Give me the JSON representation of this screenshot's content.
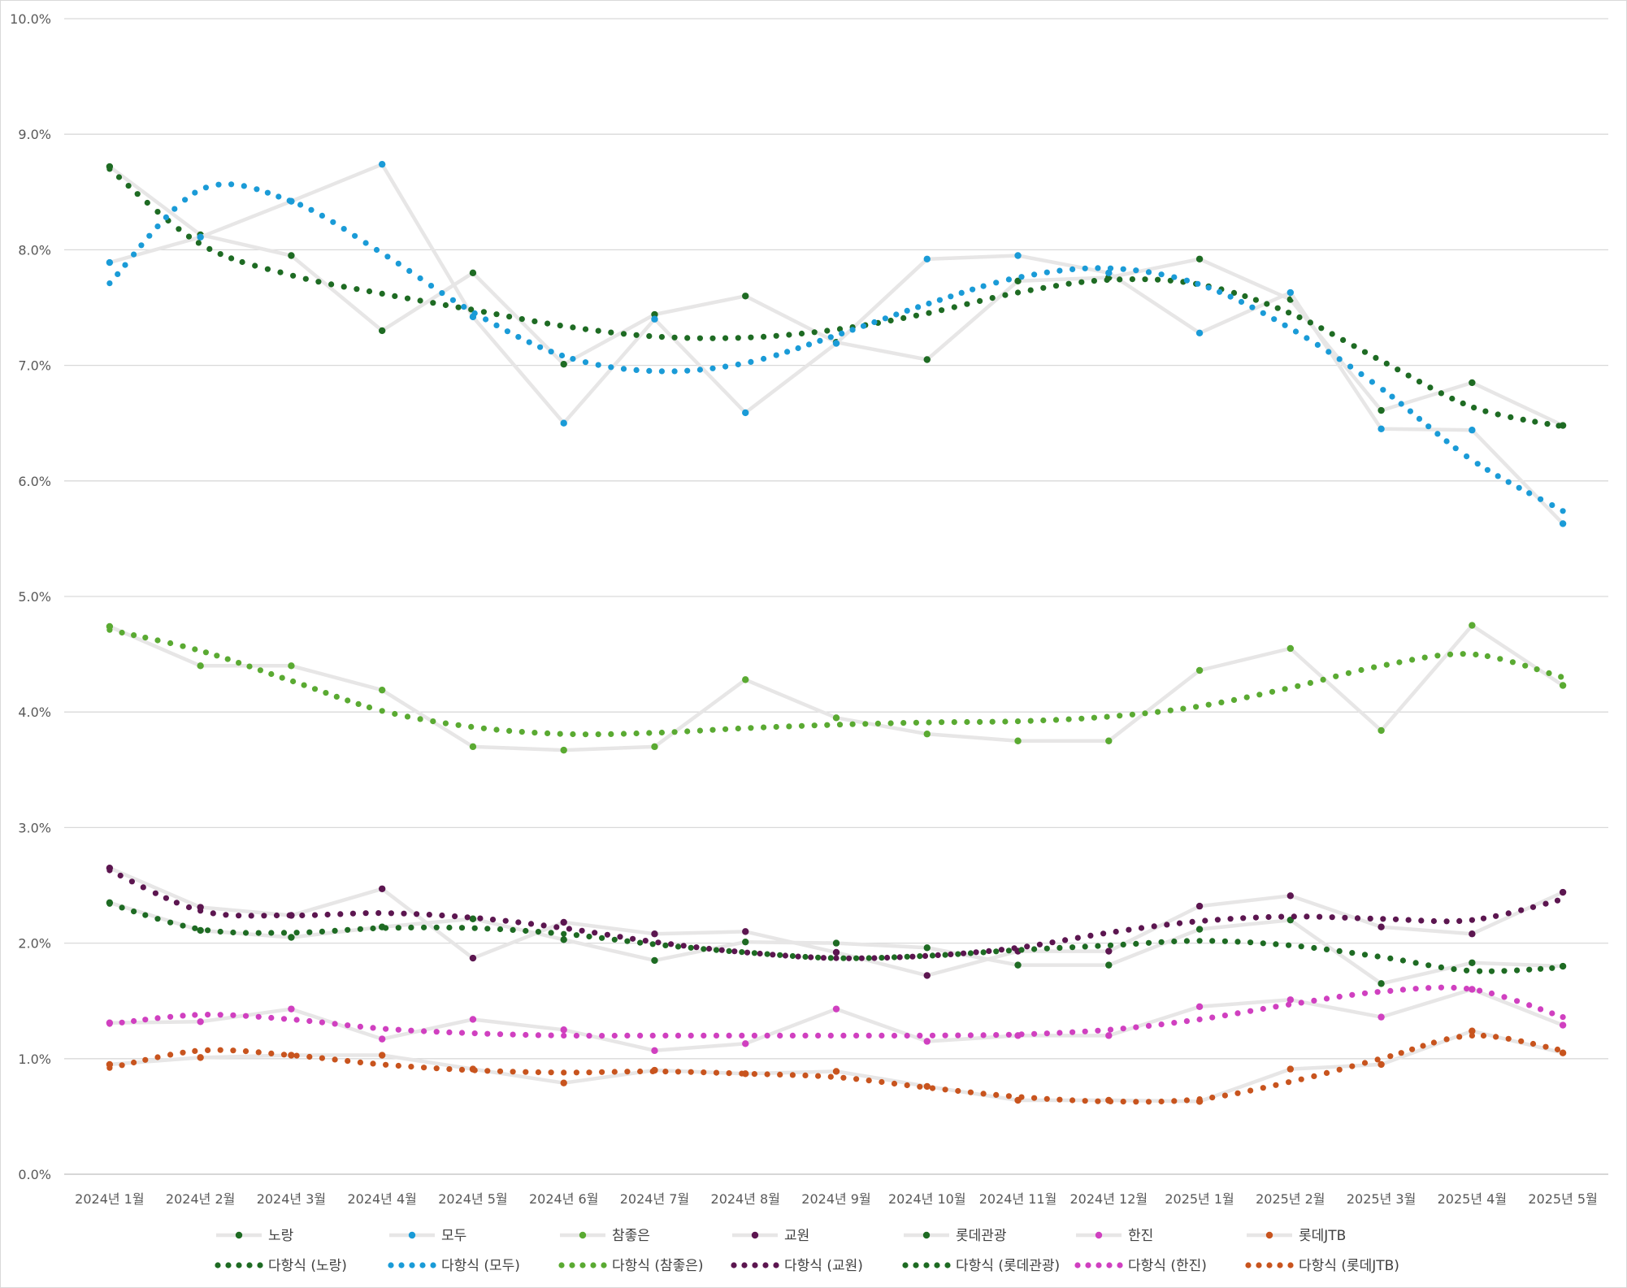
{
  "chart_data": {
    "type": "line",
    "title": "",
    "xlabel": "",
    "ylabel": "",
    "ylim": [
      0,
      10
    ],
    "y_ticks": [
      "0.0%",
      "1.0%",
      "2.0%",
      "3.0%",
      "4.0%",
      "5.0%",
      "6.0%",
      "7.0%",
      "8.0%",
      "9.0%",
      "10.0%"
    ],
    "grid": true,
    "legend_position": "bottom",
    "categories": [
      "2024년 1월",
      "2024년 2월",
      "2024년 3월",
      "2024년 4월",
      "2024년 5월",
      "2024년 6월",
      "2024년 7월",
      "2024년 8월",
      "2024년 9월",
      "2024년 10월",
      "2024년 11월",
      "2024년 12월",
      "2025년 1월",
      "2025년 2월",
      "2025년 3월",
      "2025년 4월",
      "2025년 5월"
    ],
    "line_color": "#e7e6e6",
    "series": [
      {
        "name": "노랑",
        "color": "#1e6b23",
        "trend_name": "다항식 (노랑)",
        "values": [
          8.72,
          8.13,
          7.95,
          7.3,
          7.8,
          7.01,
          7.44,
          7.6,
          7.2,
          7.05,
          7.73,
          7.76,
          7.92,
          7.57,
          6.61,
          6.85,
          6.48
        ],
        "trend": [
          8.7,
          8.05,
          7.78,
          7.62,
          7.48,
          7.34,
          7.25,
          7.24,
          7.31,
          7.45,
          7.63,
          7.74,
          7.7,
          7.45,
          7.04,
          6.64,
          6.47
        ]
      },
      {
        "name": "모두",
        "color": "#1a9bd7",
        "trend_name": "다항식 (모두)",
        "values": [
          7.89,
          8.11,
          8.42,
          8.74,
          7.42,
          6.5,
          7.4,
          6.59,
          7.19,
          7.92,
          7.95,
          7.8,
          7.28,
          7.63,
          6.45,
          6.44,
          5.63
        ],
        "trend": [
          7.71,
          8.52,
          8.42,
          7.97,
          7.46,
          7.08,
          6.95,
          7.02,
          7.26,
          7.53,
          7.76,
          7.84,
          7.7,
          7.32,
          6.8,
          6.18,
          5.74
        ]
      },
      {
        "name": "참좋은",
        "color": "#5aaa32",
        "trend_name": "다항식 (참좋은)",
        "values": [
          4.74,
          4.4,
          4.4,
          4.19,
          3.7,
          3.67,
          3.7,
          4.28,
          3.95,
          3.81,
          3.75,
          3.75,
          4.36,
          4.55,
          3.84,
          4.75,
          4.23
        ],
        "trend": [
          4.71,
          4.53,
          4.27,
          4.01,
          3.87,
          3.81,
          3.82,
          3.86,
          3.89,
          3.91,
          3.92,
          3.96,
          4.05,
          4.21,
          4.4,
          4.5,
          4.3
        ]
      },
      {
        "name": "교원",
        "color": "#5c1650",
        "trend_name": "다항식 (교원)",
        "values": [
          2.65,
          2.31,
          2.24,
          2.47,
          1.87,
          2.18,
          2.08,
          2.1,
          1.92,
          1.72,
          1.93,
          1.93,
          2.32,
          2.41,
          2.14,
          2.08,
          2.44
        ],
        "trend": [
          2.63,
          2.28,
          2.24,
          2.26,
          2.22,
          2.13,
          2.01,
          1.92,
          1.87,
          1.89,
          1.96,
          2.09,
          2.19,
          2.23,
          2.21,
          2.2,
          2.38
        ]
      },
      {
        "name": "롯데관광",
        "color": "#1e6b23",
        "trend_name": "다항식 (롯데관광)",
        "values": [
          2.35,
          2.11,
          2.05,
          2.14,
          2.21,
          2.03,
          1.85,
          2.01,
          2.0,
          1.96,
          1.81,
          1.81,
          2.12,
          2.2,
          1.65,
          1.83,
          1.8
        ],
        "trend": [
          2.34,
          2.12,
          2.09,
          2.13,
          2.13,
          2.08,
          1.99,
          1.92,
          1.87,
          1.89,
          1.94,
          1.98,
          2.02,
          1.98,
          1.88,
          1.76,
          1.79
        ]
      },
      {
        "name": "한진",
        "color": "#d040c0",
        "trend_name": "다항식 (한진)",
        "values": [
          1.31,
          1.32,
          1.43,
          1.17,
          1.34,
          1.25,
          1.07,
          1.13,
          1.43,
          1.15,
          1.2,
          1.2,
          1.45,
          1.51,
          1.36,
          1.6,
          1.29
        ],
        "trend": [
          1.3,
          1.38,
          1.34,
          1.26,
          1.22,
          1.2,
          1.2,
          1.2,
          1.2,
          1.2,
          1.21,
          1.25,
          1.34,
          1.47,
          1.58,
          1.6,
          1.36
        ]
      },
      {
        "name": "롯데JTB",
        "color": "#c8541e",
        "trend_name": "다항식 (롯데JTB)",
        "values": [
          0.95,
          1.01,
          1.03,
          1.03,
          0.91,
          0.79,
          0.9,
          0.87,
          0.89,
          0.76,
          0.64,
          0.64,
          0.63,
          0.91,
          0.95,
          1.24,
          1.05
        ],
        "trend": [
          0.92,
          1.07,
          1.03,
          0.95,
          0.9,
          0.88,
          0.89,
          0.87,
          0.84,
          0.75,
          0.67,
          0.63,
          0.65,
          0.8,
          1.0,
          1.2,
          1.07
        ]
      }
    ]
  }
}
